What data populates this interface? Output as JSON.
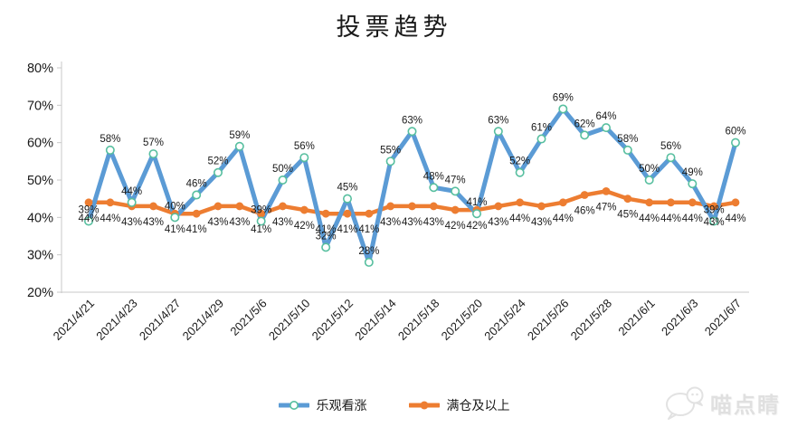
{
  "title": "投票趋势",
  "watermark": {
    "text": "喵点睛",
    "logo": "cat-bubble-logo"
  },
  "colors": {
    "bullish_line": "#5B9BD5",
    "bullish_marker": "#57BF9F",
    "full_position_line": "#ED7D31",
    "axis": "#C9C9C9",
    "label_text": "#1a1a1a"
  },
  "chart_data": {
    "type": "line",
    "title": "投票趋势",
    "xlabel": "",
    "ylabel": "",
    "ylim": [
      20,
      80
    ],
    "y_ticks": [
      20,
      30,
      40,
      50,
      60,
      70,
      80
    ],
    "y_tick_suffix": "%",
    "grid": false,
    "data_labels": true,
    "legend_position": "bottom",
    "n_points": 31,
    "x_labels_every": 2,
    "x_labels": [
      "2021/4/21",
      "2021/4/23",
      "2021/4/27",
      "2021/4/29",
      "2021/5/6",
      "2021/5/10",
      "2021/5/12",
      "2021/5/14",
      "2021/5/18",
      "2021/5/20",
      "2021/5/24",
      "2021/5/26",
      "2021/5/28",
      "2021/6/1",
      "2021/6/3",
      "2021/6/7"
    ],
    "series": [
      {
        "name": "乐观看涨",
        "color": "#5B9BD5",
        "marker": "open-circle",
        "marker_color": "#57BF9F",
        "label_position": "above",
        "values": [
          39,
          58,
          44,
          57,
          40,
          46,
          52,
          59,
          39,
          50,
          56,
          32,
          45,
          28,
          55,
          63,
          48,
          47,
          41,
          63,
          52,
          61,
          69,
          62,
          64,
          58,
          50,
          56,
          49,
          39,
          60
        ]
      },
      {
        "name": "满仓及以上",
        "color": "#ED7D31",
        "marker": "filled-circle",
        "marker_color": "#ED7D31",
        "label_position": "below",
        "values": [
          44,
          44,
          43,
          43,
          41,
          41,
          43,
          43,
          41,
          43,
          42,
          41,
          41,
          41,
          43,
          43,
          43,
          42,
          42,
          43,
          44,
          43,
          44,
          46,
          47,
          45,
          44,
          44,
          44,
          43,
          44
        ]
      }
    ]
  }
}
